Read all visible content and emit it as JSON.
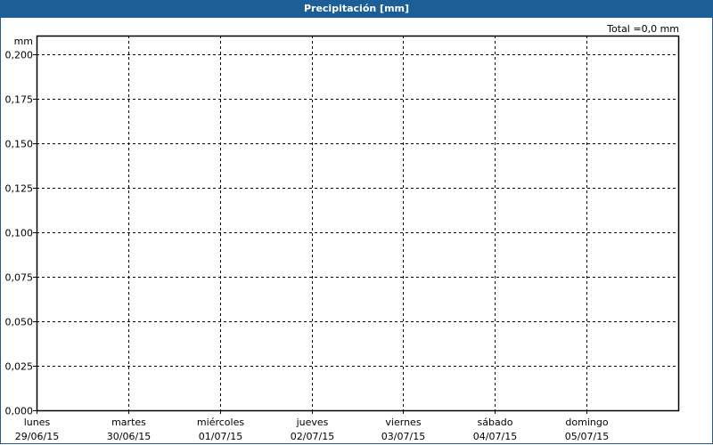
{
  "chart_data": {
    "type": "bar",
    "title": "Precipitación [mm]",
    "ylabel": "mm",
    "annotation": "Total =0,0 mm",
    "ylim": [
      0,
      0.2
    ],
    "y_ticks": [
      "0,000",
      "0,025",
      "0,050",
      "0,075",
      "0,100",
      "0,125",
      "0,150",
      "0,175",
      "0,200"
    ],
    "categories": [
      {
        "day": "lunes",
        "date": "29/06/15"
      },
      {
        "day": "martes",
        "date": "30/06/15"
      },
      {
        "day": "miércoles",
        "date": "01/07/15"
      },
      {
        "day": "jueves",
        "date": "02/07/15"
      },
      {
        "day": "viernes",
        "date": "03/07/15"
      },
      {
        "day": "sábado",
        "date": "04/07/15"
      },
      {
        "day": "domingo",
        "date": "05/07/15"
      }
    ],
    "values": [
      0,
      0,
      0,
      0,
      0,
      0,
      0
    ],
    "grid": true,
    "colors": {
      "titlebar": "#1c5f96"
    }
  }
}
